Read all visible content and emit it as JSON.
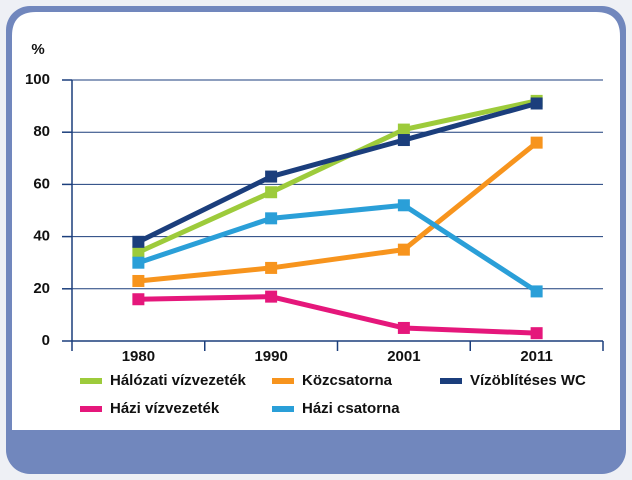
{
  "chart_data": {
    "type": "line",
    "y_label": "%",
    "categories": [
      "1980",
      "1990",
      "2001",
      "2011"
    ],
    "series": [
      {
        "name": "Hálózati vízvezeték",
        "color": "#9dcb3b",
        "values": [
          34,
          57,
          81,
          92
        ]
      },
      {
        "name": "Közcsatorna",
        "color": "#f7941d",
        "values": [
          23,
          28,
          35,
          76
        ]
      },
      {
        "name": "Vízöblítéses WC",
        "color": "#1b3e7c",
        "values": [
          38,
          63,
          77,
          91
        ]
      },
      {
        "name": "Házi vízvezeték",
        "color": "#e5177b",
        "values": [
          16,
          17,
          5,
          3
        ]
      },
      {
        "name": "Házi csatorna",
        "color": "#2a9fd8",
        "values": [
          30,
          47,
          52,
          19
        ]
      }
    ],
    "ylim": [
      0,
      100
    ],
    "yticks": [
      0,
      20,
      40,
      60,
      80,
      100
    ],
    "grid": true
  }
}
